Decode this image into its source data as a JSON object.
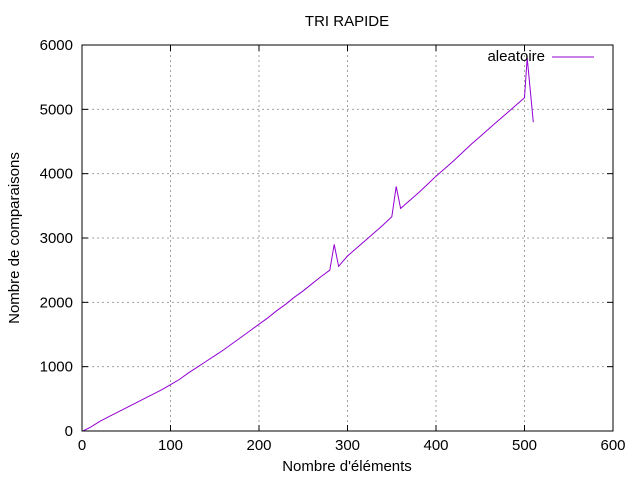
{
  "chart_data": {
    "type": "line",
    "title": "TRI RAPIDE",
    "xlabel": "Nombre d'éléments",
    "ylabel": "Nombre de comparaisons",
    "xlim": [
      0,
      600
    ],
    "ylim": [
      0,
      6000
    ],
    "xticks": [
      0,
      100,
      200,
      300,
      400,
      500,
      600
    ],
    "yticks": [
      0,
      1000,
      2000,
      3000,
      4000,
      5000,
      6000
    ],
    "xtick_labels": [
      "0",
      "100",
      "200",
      "300",
      "400",
      "500",
      "600"
    ],
    "ytick_labels": [
      "0",
      "1000",
      "2000",
      "3000",
      "4000",
      "5000",
      "6000"
    ],
    "grid": true,
    "legend_position": "top-right",
    "series": [
      {
        "name": "aleatoire",
        "color": "#9400d3",
        "x": [
          1,
          10,
          20,
          30,
          40,
          50,
          60,
          70,
          80,
          90,
          100,
          110,
          120,
          130,
          140,
          150,
          160,
          170,
          180,
          190,
          200,
          210,
          220,
          230,
          240,
          250,
          260,
          270,
          280,
          285,
          290,
          300,
          310,
          320,
          330,
          340,
          350,
          355,
          360,
          370,
          380,
          390,
          400,
          410,
          420,
          430,
          440,
          450,
          460,
          470,
          480,
          490,
          500,
          503,
          510
        ],
        "y": [
          0,
          60,
          150,
          220,
          290,
          360,
          430,
          500,
          570,
          640,
          720,
          800,
          900,
          990,
          1080,
          1170,
          1260,
          1360,
          1460,
          1560,
          1660,
          1760,
          1870,
          1970,
          2080,
          2180,
          2290,
          2400,
          2500,
          2900,
          2560,
          2720,
          2840,
          2960,
          3080,
          3200,
          3330,
          3800,
          3460,
          3580,
          3700,
          3830,
          3960,
          4080,
          4200,
          4330,
          4460,
          4580,
          4700,
          4820,
          4940,
          5060,
          5180,
          5800,
          4800
        ]
      }
    ]
  }
}
